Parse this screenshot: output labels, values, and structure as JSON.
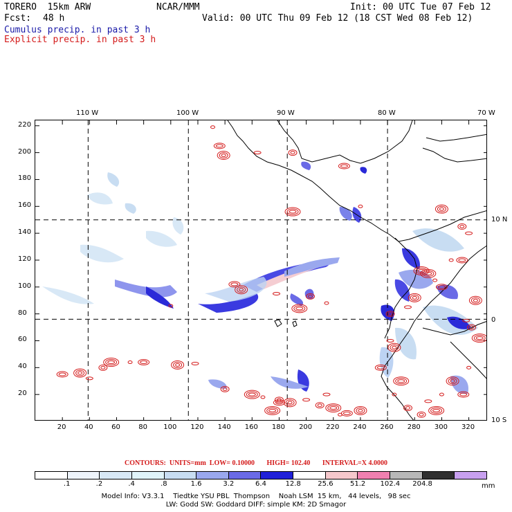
{
  "header": {
    "model": "TORERO  15km ARW",
    "org": "NCAR/MMM",
    "init": "Init: 00 UTC Tue 07 Feb 12",
    "fcst_label": "Fcst:",
    "fcst_value": "48 h",
    "valid": "Valid: 00 UTC Thu 09 Feb 12 (18 CST Wed 08 Feb 12)",
    "cumulus_label": "Cumulus precip. in past 3 h",
    "explicit_label": "Explicit precip. in past 3 h"
  },
  "colors": {
    "cumulus_text": "#1a1aa8",
    "explicit_text": "#d41a1a",
    "contour": "#d41a1a"
  },
  "map": {
    "top_lon_labels": [
      "110 W",
      "100 W",
      "90 W",
      "80 W",
      "70 W"
    ],
    "right_lat_labels": [
      "10 N",
      "0",
      "10 S"
    ],
    "y_ticks": [
      "220",
      "200",
      "180",
      "160",
      "140",
      "120",
      "100",
      "80",
      "60",
      "40",
      "20"
    ],
    "x_ticks": [
      "20",
      "40",
      "60",
      "80",
      "100",
      "120",
      "140",
      "160",
      "180",
      "200",
      "220",
      "240",
      "260",
      "280",
      "300",
      "320"
    ],
    "x_range": [
      0,
      334
    ],
    "y_range": [
      0,
      224
    ],
    "grid_x": [
      39,
      113,
      186,
      260
    ],
    "grid_y": [
      76,
      150
    ],
    "contour_spots": [
      [
        100,
        86
      ],
      [
        147,
        102
      ],
      [
        152,
        98
      ],
      [
        178,
        95
      ],
      [
        203,
        93
      ],
      [
        195,
        84
      ],
      [
        215,
        88
      ],
      [
        20,
        35
      ],
      [
        33,
        36
      ],
      [
        40,
        32
      ],
      [
        50,
        40
      ],
      [
        56,
        44
      ],
      [
        70,
        44
      ],
      [
        80,
        44
      ],
      [
        105,
        42
      ],
      [
        118,
        43
      ],
      [
        140,
        24
      ],
      [
        160,
        20
      ],
      [
        168,
        18
      ],
      [
        180,
        14
      ],
      [
        188,
        14
      ],
      [
        200,
        16
      ],
      [
        210,
        12
      ],
      [
        220,
        10
      ],
      [
        225,
        5
      ],
      [
        230,
        6
      ],
      [
        240,
        8
      ],
      [
        215,
        20
      ],
      [
        180,
        16
      ],
      [
        175,
        8
      ],
      [
        131,
        219
      ],
      [
        136,
        205
      ],
      [
        139,
        198
      ],
      [
        164,
        200
      ],
      [
        190,
        200
      ],
      [
        190,
        156
      ],
      [
        240,
        160
      ],
      [
        228,
        190
      ],
      [
        300,
        158
      ],
      [
        320,
        140
      ],
      [
        315,
        145
      ],
      [
        290,
        110
      ],
      [
        295,
        105
      ],
      [
        300,
        100
      ],
      [
        280,
        92
      ],
      [
        275,
        85
      ],
      [
        262,
        80
      ],
      [
        285,
        112
      ],
      [
        307,
        120
      ],
      [
        315,
        120
      ],
      [
        325,
        90
      ],
      [
        318,
        75
      ],
      [
        322,
        70
      ],
      [
        328,
        62
      ],
      [
        320,
        40
      ],
      [
        316,
        20
      ],
      [
        308,
        30
      ],
      [
        290,
        15
      ],
      [
        285,
        5
      ],
      [
        270,
        30
      ],
      [
        265,
        20
      ],
      [
        255,
        40
      ],
      [
        265,
        55
      ],
      [
        262,
        60
      ],
      [
        275,
        10
      ],
      [
        296,
        8
      ],
      [
        300,
        20
      ]
    ]
  },
  "contours_text": {
    "label": "CONTOURS:",
    "units": "UNITS=mm",
    "low": "LOW= 0.10000",
    "high": "HIGH= 102.40",
    "interval": "INTERVAL=X 4.0000"
  },
  "colorbar": {
    "colors": [
      "#ffffff",
      "#eef4fb",
      "#d8e8f6",
      "#e0f4fa",
      "#c8ddf2",
      "#9aa8ee",
      "#6a6ae6",
      "#2020d8",
      "#ffffff",
      "#f6c8cc",
      "#f080b0",
      "#b8b8b8",
      "#303030",
      "#c8a0f0"
    ],
    "labels": [
      ".1",
      ".2",
      ".4",
      ".8",
      "1.6",
      "3.2",
      "6.4",
      "12.8",
      "25.6",
      "51.2",
      "102.4",
      "204.8"
    ],
    "unit": "mm"
  },
  "footer": {
    "line1": "Model Info: V3.3.1    Tiedtke YSU PBL  Thompson    Noah LSM  15 km,   44 levels,   98 sec",
    "line2": "LW: Godd SW: Goddard DIFF: simple KM: 2D Smagor"
  }
}
